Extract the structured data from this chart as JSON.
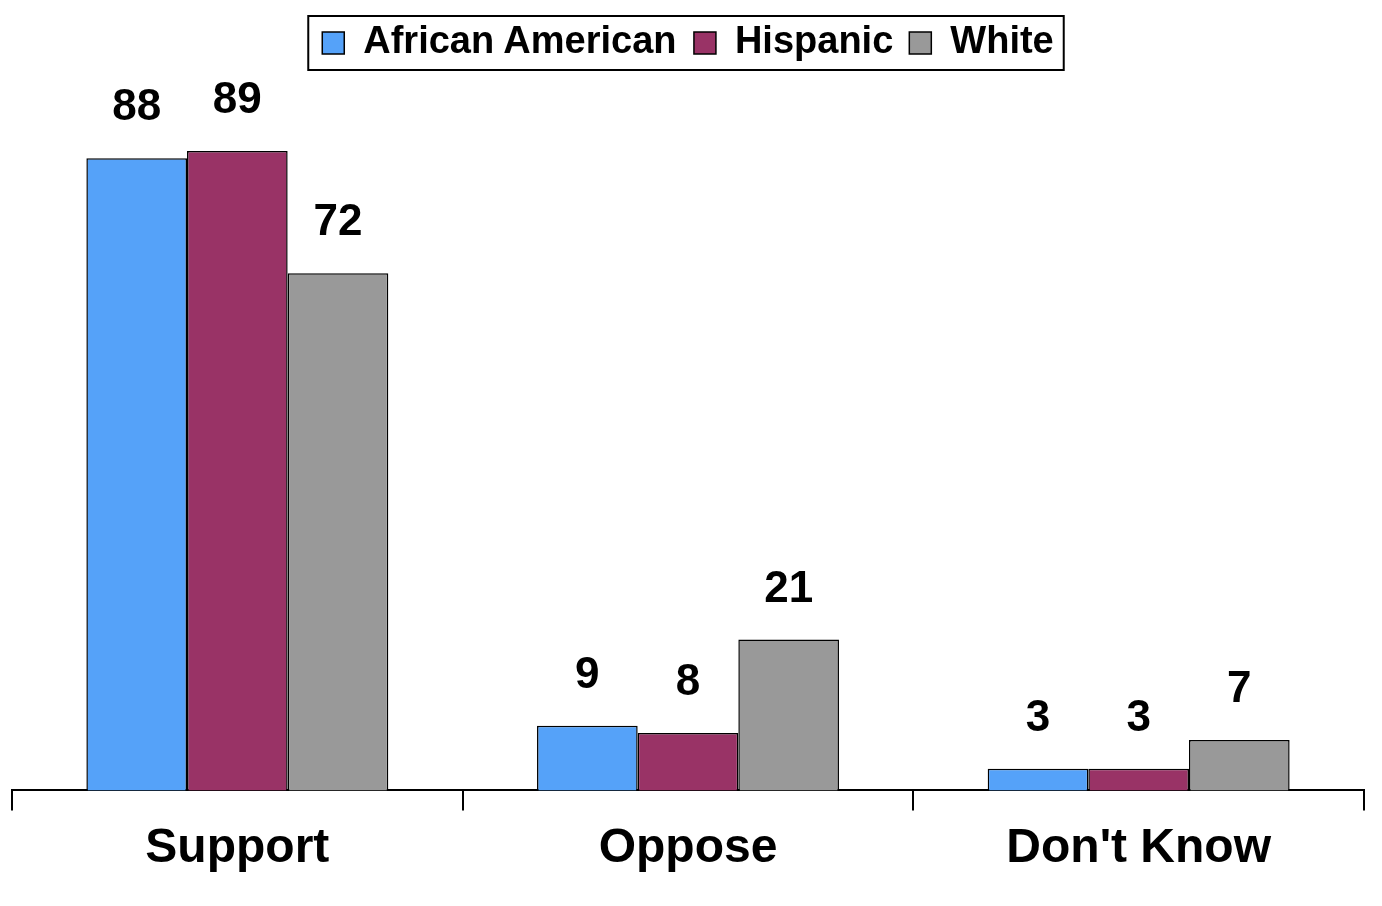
{
  "chart_data": {
    "type": "bar",
    "categories": [
      "Support",
      "Oppose",
      "Don't Know"
    ],
    "series": [
      {
        "name": "African American",
        "color": "#55a2f9",
        "values": [
          88,
          9,
          3
        ]
      },
      {
        "name": "Hispanic",
        "color": "#993366",
        "values": [
          89,
          8,
          3
        ]
      },
      {
        "name": "White",
        "color": "#999999",
        "values": [
          72,
          21,
          7
        ]
      }
    ],
    "data_labels": true,
    "legend": "top",
    "grid": false
  }
}
